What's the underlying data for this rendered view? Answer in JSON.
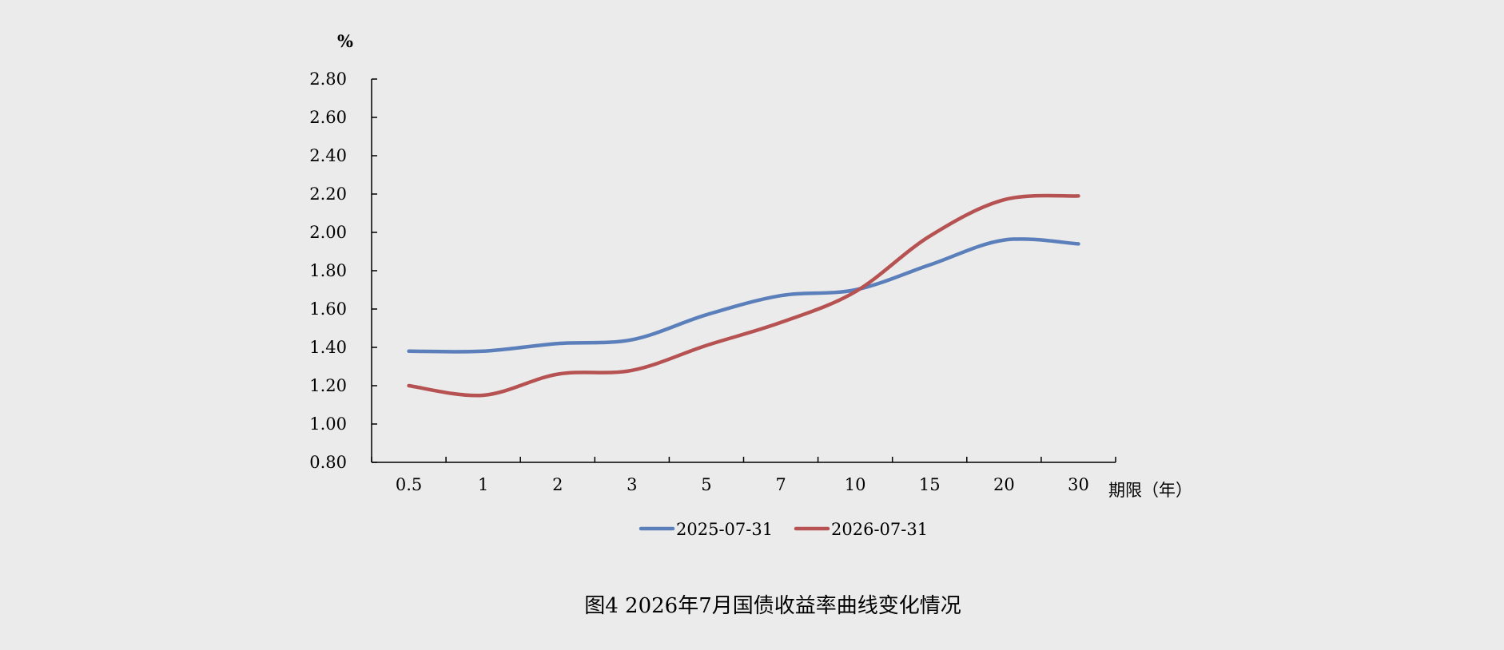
{
  "chart_data": {
    "type": "line",
    "title": "图4 2026年7月国债收益率曲线变化情况",
    "xlabel": "期限（年）",
    "ylabel": "%",
    "categories": [
      "0.5",
      "1",
      "2",
      "3",
      "5",
      "7",
      "10",
      "15",
      "20",
      "30"
    ],
    "ylim": [
      0.8,
      2.8
    ],
    "yticks": [
      "0.80",
      "1.00",
      "1.20",
      "1.40",
      "1.60",
      "1.80",
      "2.00",
      "2.20",
      "2.40",
      "2.60",
      "2.80"
    ],
    "grid": false,
    "legend_position": "bottom",
    "series": [
      {
        "name": "2025-07-31",
        "color": "#5b7fbb",
        "values": [
          1.38,
          1.38,
          1.42,
          1.44,
          1.57,
          1.67,
          1.7,
          1.83,
          1.96,
          1.94
        ]
      },
      {
        "name": "2026-07-31",
        "color": "#b65252",
        "values": [
          1.2,
          1.15,
          1.26,
          1.28,
          1.41,
          1.53,
          1.69,
          1.98,
          2.17,
          2.19
        ]
      }
    ]
  }
}
